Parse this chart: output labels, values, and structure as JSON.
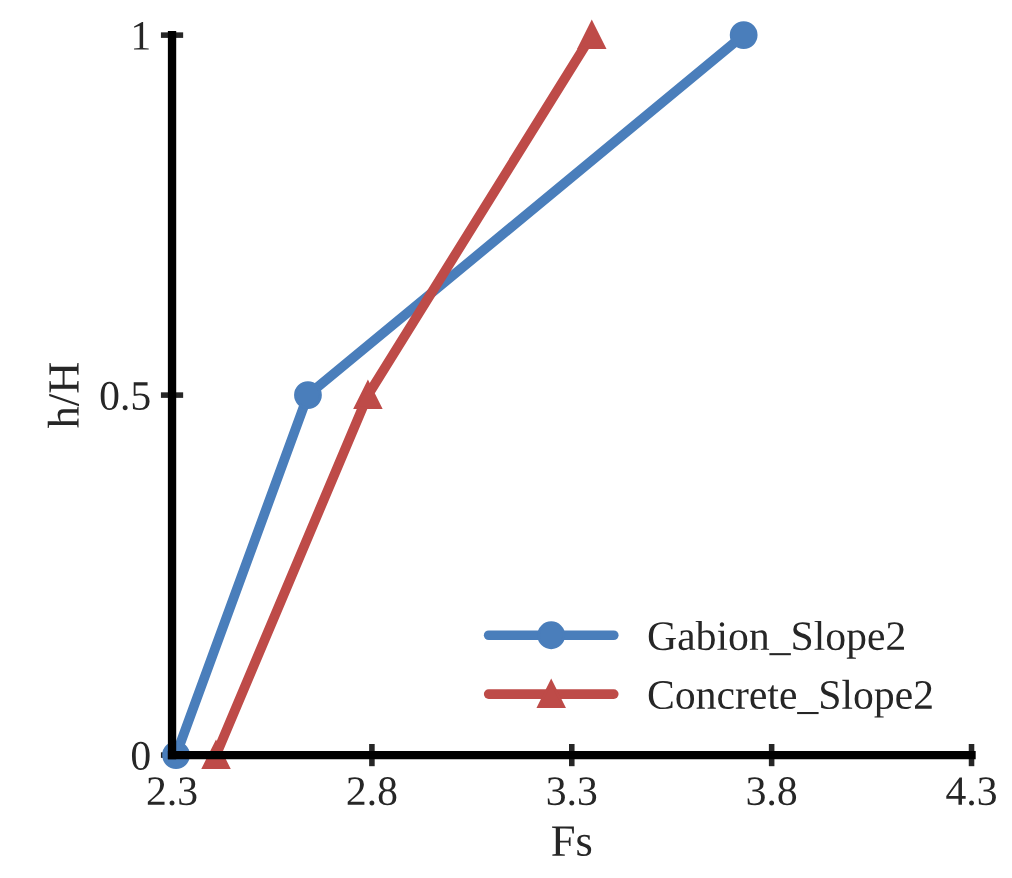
{
  "chart_data": {
    "type": "line",
    "xlabel": "Fs",
    "ylabel": "h/H",
    "xlim": [
      2.3,
      4.3
    ],
    "xticks": [
      2.3,
      2.8,
      3.3,
      3.8,
      4.3
    ],
    "ylim": [
      0,
      1
    ],
    "yticks": [
      0,
      0.5,
      1
    ],
    "grid": false,
    "legend": "bottom right",
    "series": [
      {
        "name": "Gabion_Slope2",
        "color": "#4a7ebb",
        "marker": "circle",
        "x": [
          2.31,
          2.64,
          3.73
        ],
        "values": [
          0,
          0.5,
          1
        ]
      },
      {
        "name": "Concrete_Slope2",
        "color": "#be4b48",
        "marker": "triangle",
        "x": [
          2.41,
          2.79,
          3.35
        ],
        "values": [
          0,
          0.5,
          1
        ]
      }
    ]
  }
}
